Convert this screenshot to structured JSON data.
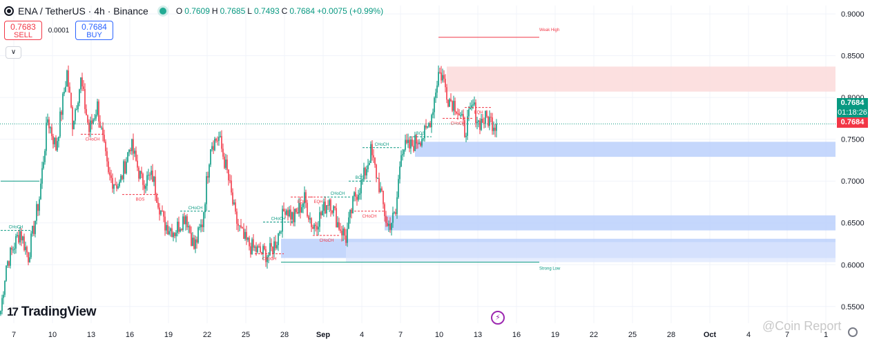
{
  "header": {
    "symbol": "ENA / TetherUS · 4h · Binance",
    "o_label": "O",
    "o": "0.7609",
    "h_label": "H",
    "h": "0.7685",
    "l_label": "L",
    "l": "0.7493",
    "c_label": "C",
    "c": "0.7684",
    "change": "+0.0075 (+0.99%)"
  },
  "trade": {
    "sell_price": "0.7683",
    "sell_label": "SELL",
    "spread": "0.0001",
    "buy_price": "0.7684",
    "buy_label": "BUY"
  },
  "collapse_icon": "chevron-down-icon",
  "branding": {
    "logo_mark": "17",
    "logo_text": "TradingView"
  },
  "watermark": "@Coin Report",
  "price_tags": {
    "last": "0.7684",
    "countdown": "01:18:26",
    "bid": "0.7684"
  },
  "colors": {
    "up": "#089981",
    "down": "#f23645",
    "demand": "#bbd0fb",
    "supply": "#fcdada",
    "grid": "#f0f3fa"
  },
  "chart_data": {
    "type": "candlestick",
    "ylim": [
      0.53,
      0.91
    ],
    "y_ticks": [
      "0.9000",
      "0.8500",
      "0.8000",
      "0.7500",
      "0.7000",
      "0.6500",
      "0.6000",
      "0.5500"
    ],
    "x_ticks": [
      "7",
      "10",
      "13",
      "16",
      "19",
      "22",
      "25",
      "28",
      "Sep",
      "4",
      "7",
      "10",
      "13",
      "16",
      "19",
      "22",
      "25",
      "28",
      "Oct",
      "4",
      "7",
      "1"
    ],
    "last_price": 0.7684,
    "waypoints": [
      [
        0,
        0.545
      ],
      [
        4,
        0.6
      ],
      [
        14,
        0.64
      ],
      [
        20,
        0.61
      ],
      [
        28,
        0.68
      ],
      [
        34,
        0.775
      ],
      [
        40,
        0.74
      ],
      [
        48,
        0.83
      ],
      [
        52,
        0.77
      ],
      [
        58,
        0.82
      ],
      [
        64,
        0.76
      ],
      [
        70,
        0.79
      ],
      [
        78,
        0.705
      ],
      [
        86,
        0.695
      ],
      [
        94,
        0.745
      ],
      [
        102,
        0.7
      ],
      [
        110,
        0.705
      ],
      [
        118,
        0.65
      ],
      [
        126,
        0.64
      ],
      [
        134,
        0.66
      ],
      [
        140,
        0.62
      ],
      [
        146,
        0.65
      ],
      [
        152,
        0.745
      ],
      [
        158,
        0.752
      ],
      [
        164,
        0.71
      ],
      [
        170,
        0.655
      ],
      [
        176,
        0.63
      ],
      [
        182,
        0.62
      ],
      [
        188,
        0.615
      ],
      [
        194,
        0.612
      ],
      [
        200,
        0.63
      ],
      [
        206,
        0.67
      ],
      [
        212,
        0.655
      ],
      [
        220,
        0.678
      ],
      [
        226,
        0.645
      ],
      [
        232,
        0.66
      ],
      [
        238,
        0.68
      ],
      [
        244,
        0.65
      ],
      [
        250,
        0.632
      ],
      [
        256,
        0.68
      ],
      [
        262,
        0.7
      ],
      [
        268,
        0.735
      ],
      [
        274,
        0.695
      ],
      [
        280,
        0.645
      ],
      [
        286,
        0.66
      ],
      [
        290,
        0.74
      ],
      [
        296,
        0.74
      ],
      [
        302,
        0.75
      ],
      [
        308,
        0.757
      ],
      [
        312,
        0.78
      ],
      [
        317,
        0.83
      ],
      [
        320,
        0.825
      ],
      [
        324,
        0.8
      ],
      [
        330,
        0.79
      ],
      [
        336,
        0.76
      ],
      [
        342,
        0.79
      ],
      [
        346,
        0.77
      ],
      [
        352,
        0.775
      ],
      [
        358,
        0.7684
      ]
    ],
    "zones": [
      {
        "kind": "supply",
        "top": 0.837,
        "bottom": 0.807,
        "from": 323
      },
      {
        "kind": "demand",
        "top": 0.747,
        "bottom": 0.729,
        "from": 300
      },
      {
        "kind": "demand",
        "top": 0.659,
        "bottom": 0.641,
        "from": 278
      },
      {
        "kind": "demand",
        "top": 0.631,
        "bottom": 0.608,
        "from": 203
      },
      {
        "kind": "demand-light",
        "top": 0.627,
        "bottom": 0.603,
        "from": 250
      }
    ],
    "levels": [
      {
        "label": "Weak High",
        "price": 0.872,
        "x0": 317,
        "x1": 390,
        "color": "#f23645",
        "style": "solid",
        "label_x": 390
      },
      {
        "label": "Strong Low",
        "price": 0.603,
        "x0": 203,
        "x1": 390,
        "color": "#089981",
        "style": "solid",
        "label_x": 390
      },
      {
        "label": "",
        "price": 0.7,
        "x0": 0,
        "x1": 28,
        "color": "#089981",
        "style": "solid"
      }
    ],
    "structure_labels": [
      {
        "text": "CHoCH",
        "price": 0.641,
        "x0": 0,
        "x1": 22,
        "color": "#089981"
      },
      {
        "text": "CHoCH",
        "price": 0.756,
        "x0": 58,
        "x1": 75,
        "color": "#f23645"
      },
      {
        "text": "BOS",
        "price": 0.684,
        "x0": 88,
        "x1": 114,
        "color": "#f23645"
      },
      {
        "text": "CHoCH",
        "price": 0.664,
        "x0": 130,
        "x1": 152,
        "color": "#089981"
      },
      {
        "text": "CHoCH",
        "price": 0.613,
        "x0": 184,
        "x1": 205,
        "color": "#f23645"
      },
      {
        "text": "CHoCH",
        "price": 0.651,
        "x0": 190,
        "x1": 212,
        "color": "#089981"
      },
      {
        "text": "EQH",
        "price": 0.681,
        "x0": 210,
        "x1": 226,
        "color": "#f23645"
      },
      {
        "text": "EQH",
        "price": 0.681,
        "x0": 224,
        "x1": 236,
        "color": "#f23645"
      },
      {
        "text": "CHoCH",
        "price": 0.681,
        "x0": 234,
        "x1": 254,
        "color": "#089981"
      },
      {
        "text": "CHoCH",
        "price": 0.635,
        "x0": 226,
        "x1": 246,
        "color": "#f23645"
      },
      {
        "text": "BOS",
        "price": 0.7,
        "x0": 252,
        "x1": 268,
        "color": "#089981"
      },
      {
        "text": "CHoCH",
        "price": 0.74,
        "x0": 262,
        "x1": 290,
        "color": "#089981"
      },
      {
        "text": "CHoCH",
        "price": 0.664,
        "x0": 256,
        "x1": 278,
        "color": "#f23645"
      },
      {
        "text": "BOS",
        "price": 0.753,
        "x0": 296,
        "x1": 312,
        "color": "#089981"
      },
      {
        "text": "CHoCH",
        "price": 0.775,
        "x0": 320,
        "x1": 342,
        "color": "#f23645"
      },
      {
        "text": "EQH",
        "price": 0.788,
        "x0": 336,
        "x1": 356,
        "color": "#f23645"
      }
    ]
  }
}
